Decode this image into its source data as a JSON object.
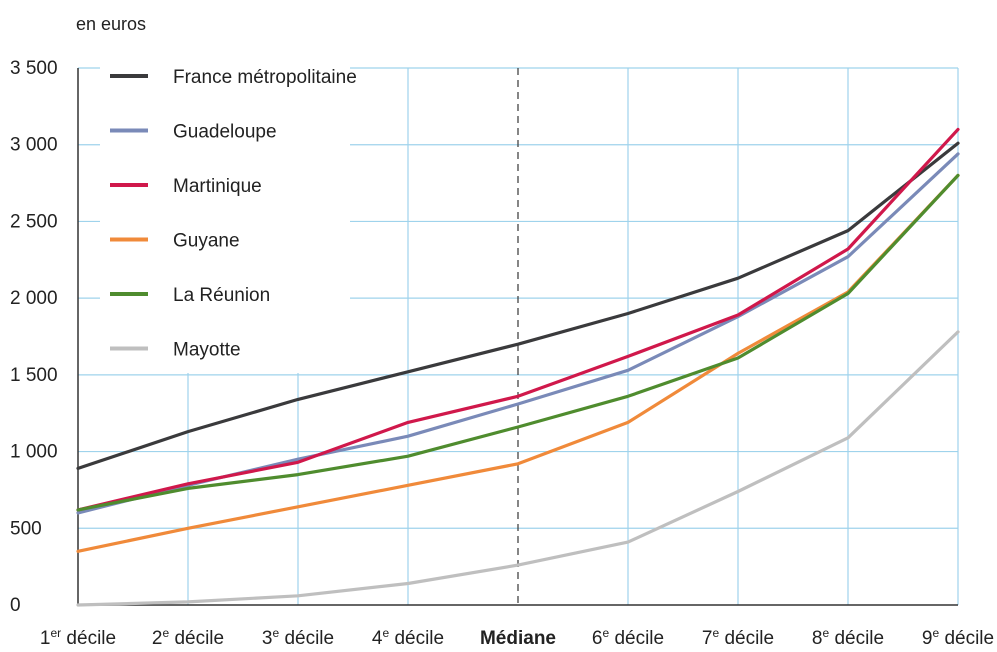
{
  "chart_data": {
    "type": "line",
    "unit_label": "en euros",
    "categories": [
      {
        "main": "1",
        "sup": "er",
        "rest": " décile",
        "bold": false
      },
      {
        "main": "2",
        "sup": "e",
        "rest": " décile",
        "bold": false
      },
      {
        "main": "3",
        "sup": "e",
        "rest": " décile",
        "bold": false
      },
      {
        "main": "4",
        "sup": "e",
        "rest": " décile",
        "bold": false
      },
      {
        "main": "Médiane",
        "sup": "",
        "rest": "",
        "bold": true
      },
      {
        "main": "6",
        "sup": "e",
        "rest": " décile",
        "bold": false
      },
      {
        "main": "7",
        "sup": "e",
        "rest": " décile",
        "bold": false
      },
      {
        "main": "8",
        "sup": "e",
        "rest": " décile",
        "bold": false
      },
      {
        "main": "9",
        "sup": "e",
        "rest": " décile",
        "bold": false
      }
    ],
    "ylim": [
      0,
      3500
    ],
    "yticks": [
      0,
      500,
      1000,
      1500,
      2000,
      2500,
      3000,
      3500
    ],
    "ytick_labels": [
      "0",
      "500",
      "1 000",
      "1 500",
      "2 000",
      "2 500",
      "3 000",
      "3 500"
    ],
    "grid": true,
    "median_marker": "dashed",
    "legend_position": "top-left",
    "series": [
      {
        "name": "France métropolitaine",
        "color": "#3a3a3c",
        "values": [
          890,
          1130,
          1340,
          1520,
          1700,
          1900,
          2130,
          2440,
          3010
        ]
      },
      {
        "name": "Guadeloupe",
        "color": "#7a8ab8",
        "values": [
          600,
          780,
          950,
          1100,
          1310,
          1530,
          1880,
          2270,
          2940
        ]
      },
      {
        "name": "Martinique",
        "color": "#d0184b",
        "values": [
          620,
          790,
          930,
          1190,
          1360,
          1620,
          1890,
          2320,
          3100
        ]
      },
      {
        "name": "Guyane",
        "color": "#f08a3a",
        "values": [
          350,
          500,
          640,
          780,
          920,
          1190,
          1640,
          2040,
          2800
        ]
      },
      {
        "name": "La Réunion",
        "color": "#4f8c2e",
        "values": [
          620,
          760,
          850,
          970,
          1160,
          1360,
          1610,
          2030,
          2800
        ]
      },
      {
        "name": "Mayotte",
        "color": "#bfbfbf",
        "values": [
          0,
          20,
          60,
          140,
          260,
          410,
          740,
          1090,
          1780
        ]
      }
    ]
  }
}
